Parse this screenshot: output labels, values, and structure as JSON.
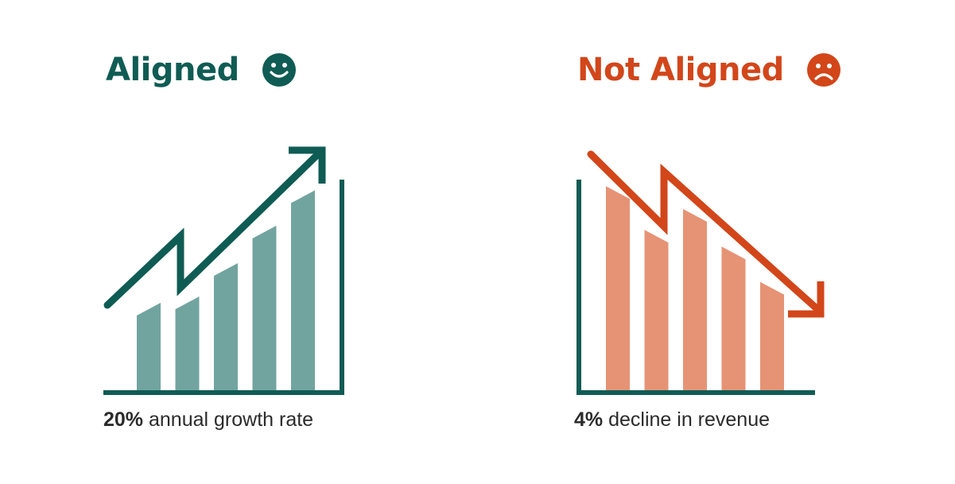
{
  "colors": {
    "teal": "#0f5c54",
    "teal_bar": "#72a49f",
    "orange": "#d2461a",
    "orange_bar": "#e69375",
    "caption_text": "#2b2b2b"
  },
  "aligned": {
    "heading": "Aligned",
    "face_icon": "smiley-face-icon",
    "caption_strong": "20%",
    "caption_rest": "annual growth rate",
    "bar_levels": [
      0.42,
      0.45,
      0.61,
      0.79,
      0.96
    ],
    "trend": "up",
    "arrow_icon": "trend-up-arrow-icon"
  },
  "not_aligned": {
    "heading": "Not Aligned",
    "face_icon": "frowning-face-icon",
    "caption_strong": "4%",
    "caption_rest": "decline in revenue",
    "bar_levels": [
      0.98,
      0.77,
      0.87,
      0.69,
      0.52
    ],
    "trend": "down",
    "arrow_icon": "trend-down-arrow-icon"
  }
}
